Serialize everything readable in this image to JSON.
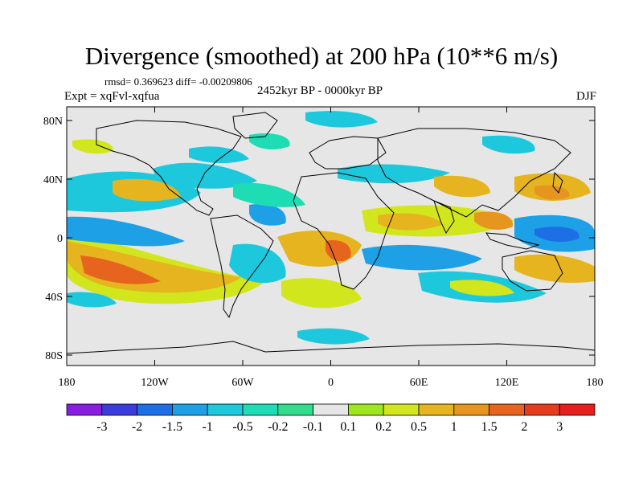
{
  "title": "Divergence (smoothed) at 200 hPa (10**6 m/s)",
  "stats": "rmsd= 0.369623 diff= -0.00209806",
  "experiment": "Expt = xqFvl-xqfua",
  "period": "2452kyr BP - 0000kyr BP",
  "season": "DJF",
  "lat_labels": [
    "80N",
    "40N",
    "0",
    "40S",
    "80S"
  ],
  "lon_labels": [
    "180",
    "120W",
    "60W",
    "0",
    "60E",
    "120E",
    "180"
  ],
  "colorbar": {
    "labels": [
      "-3",
      "-2",
      "-1.5",
      "-1",
      "-0.5",
      "-0.2",
      "-0.1",
      "0.1",
      "0.2",
      "0.5",
      "1",
      "1.5",
      "2",
      "3"
    ],
    "colors": [
      "#8a1ee0",
      "#3c3cdc",
      "#1e6ee6",
      "#1ea0e6",
      "#1ec8dc",
      "#1edcb4",
      "#32dc8c",
      "#e6e6e6",
      "#9ee61e",
      "#d2e61e",
      "#e6b41e",
      "#e6961e",
      "#e6641e",
      "#e63c1e",
      "#e61e1e"
    ]
  },
  "colors": {
    "land_outline": "#000000",
    "neutral": "#e6e6e6"
  }
}
